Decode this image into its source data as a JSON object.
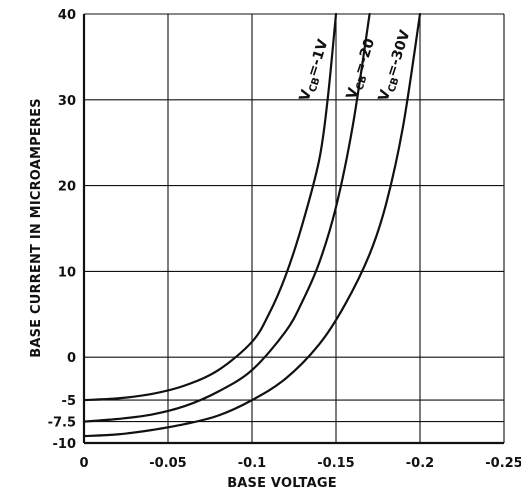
{
  "chart_data": {
    "type": "line",
    "xlabel": "BASE VOLTAGE",
    "ylabel": "BASE CURRENT IN MICROAMPERES",
    "xlim": [
      0,
      -0.25
    ],
    "ylim": [
      -10,
      40
    ],
    "x_ticks": [
      {
        "value": 0,
        "label": "0"
      },
      {
        "value": -0.05,
        "label": "-0.05"
      },
      {
        "value": -0.1,
        "label": "-0.1"
      },
      {
        "value": -0.15,
        "label": "-0.15"
      },
      {
        "value": -0.2,
        "label": "-0.2"
      },
      {
        "value": -0.25,
        "label": "-0.25"
      }
    ],
    "y_ticks": [
      {
        "value": -10,
        "label": "-10"
      },
      {
        "value": -7.5,
        "label": "-7.5"
      },
      {
        "value": -5,
        "label": "-5"
      },
      {
        "value": 0,
        "label": "0"
      },
      {
        "value": 10,
        "label": "10"
      },
      {
        "value": 20,
        "label": "20"
      },
      {
        "value": 30,
        "label": "30"
      },
      {
        "value": 40,
        "label": "40"
      }
    ],
    "grid": true,
    "series": [
      {
        "name": "VCB=-1V",
        "label_main": "V",
        "label_sub": "CB",
        "label_rest": "=-1V",
        "x": [
          0,
          -0.02,
          -0.04,
          -0.06,
          -0.08,
          -0.1,
          -0.11,
          -0.12,
          -0.13,
          -0.14,
          -0.145,
          -0.15
        ],
        "y": [
          -5,
          -4.8,
          -4.3,
          -3.3,
          -1.5,
          1.8,
          5,
          9.5,
          15.5,
          23,
          30,
          40
        ]
      },
      {
        "name": "VCB=-20",
        "label_main": "V",
        "label_sub": "CB",
        "label_rest": "=-20",
        "x": [
          0,
          -0.02,
          -0.04,
          -0.06,
          -0.08,
          -0.1,
          -0.12,
          -0.13,
          -0.14,
          -0.15,
          -0.16,
          -0.17
        ],
        "y": [
          -7.5,
          -7.2,
          -6.7,
          -5.7,
          -4,
          -1.5,
          3,
          6.5,
          11,
          17.5,
          27,
          40
        ]
      },
      {
        "name": "VCB=-30V",
        "label_main": "V",
        "label_sub": "CB",
        "label_rest": "=-30V",
        "x": [
          0,
          -0.02,
          -0.04,
          -0.06,
          -0.08,
          -0.1,
          -0.12,
          -0.14,
          -0.155,
          -0.17,
          -0.18,
          -0.19,
          -0.2
        ],
        "y": [
          -9.2,
          -9,
          -8.5,
          -7.8,
          -6.8,
          -5,
          -2.5,
          1.5,
          6,
          12,
          18,
          27,
          40
        ]
      }
    ]
  }
}
